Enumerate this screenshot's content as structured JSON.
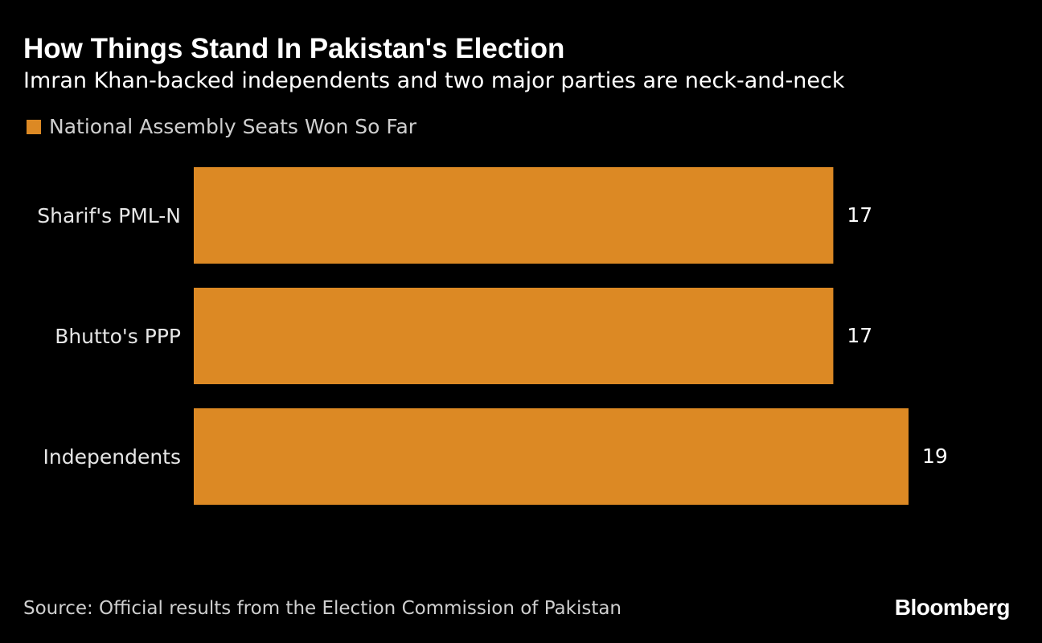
{
  "colors": {
    "background": "#000000",
    "bar": "#dc8924",
    "text": "#ffffff",
    "muted_text": "#cfcfcf"
  },
  "header": {
    "title": "How Things Stand In Pakistan's Election",
    "subtitle": "Imran Khan-backed independents and two major parties are neck-and-neck"
  },
  "footer": {
    "source": "Source: Official results from the Election Commission of Pakistan",
    "brand": "Bloomberg"
  },
  "chart_data": {
    "type": "bar",
    "orientation": "horizontal",
    "title": "How Things Stand In Pakistan's Election",
    "subtitle": "Imran Khan-backed independents and two major parties are neck-and-neck",
    "categories": [
      "Sharif's PML-N",
      "Bhutto's PPP",
      "Independents"
    ],
    "series": [
      {
        "name": "National Assembly Seats Won So Far",
        "values": [
          17,
          17,
          19
        ],
        "color": "#dc8924"
      }
    ],
    "xlim": [
      0,
      19
    ],
    "grid": false,
    "legend": "top-left",
    "data_labels": true
  }
}
